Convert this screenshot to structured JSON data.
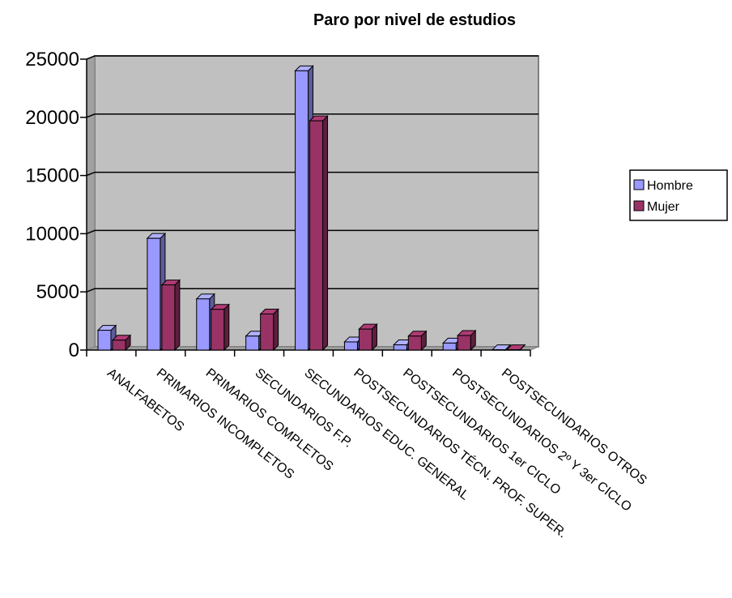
{
  "chart_data": {
    "type": "bar",
    "title": "Paro por nivel de estudios",
    "categories": [
      "ANALFABETOS",
      "PRIMARIOS INCOMPLETOS",
      "PRIMARIOS COMPLETOS",
      "SECUNDARIOS F.P.",
      "SECUNDARIOS EDUC. GENERAL",
      "POSTSECUNDARIOS TÉCN. PROF. SUPER.",
      "POSTSECUNDARIOS 1er CICLO",
      "POSTSECUNDARIOS 2º Y 3er CICLO",
      "POSTSECUNDARIOS OTROS"
    ],
    "series": [
      {
        "name": "Hombre",
        "color": "#9999ff",
        "values": [
          1700,
          9600,
          4400,
          1200,
          24000,
          700,
          450,
          600,
          30
        ]
      },
      {
        "name": "Mujer",
        "color": "#993366",
        "values": [
          850,
          5600,
          3500,
          3100,
          19700,
          1800,
          1200,
          1250,
          30
        ]
      }
    ],
    "ylim": [
      0,
      25000
    ],
    "yticks": [
      "0",
      "5000",
      "10000",
      "15000",
      "20000",
      "25000"
    ],
    "grid": true,
    "legend": "right",
    "plot_area_color": "#c0c0c0"
  }
}
